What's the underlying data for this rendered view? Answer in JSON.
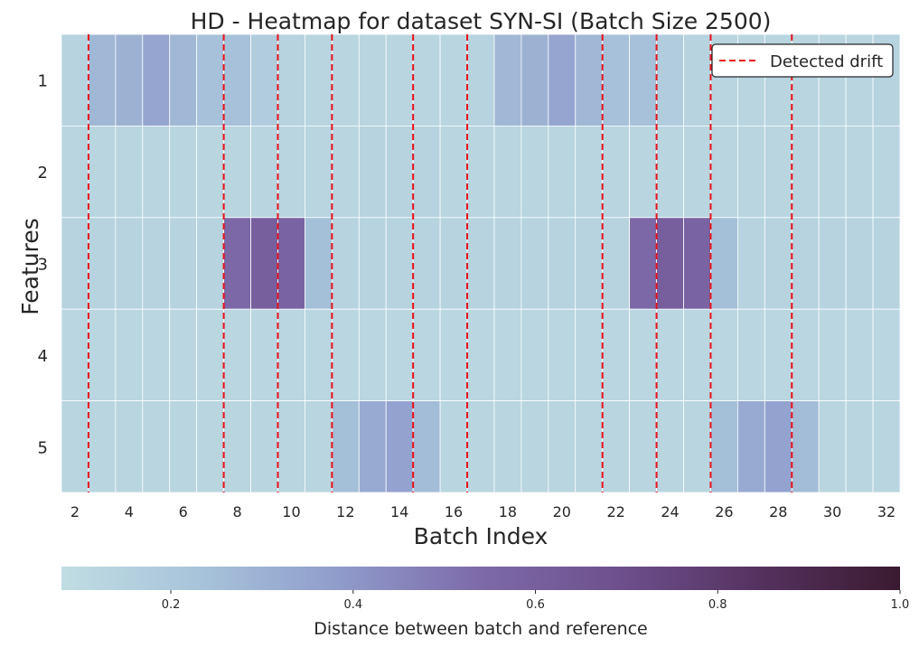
{
  "chart_data": {
    "type": "heatmap",
    "title": "HD - Heatmap for dataset SYN-SI (Batch Size 2500)",
    "xlabel": "Batch Index",
    "ylabel": "Features",
    "x": [
      2,
      3,
      4,
      5,
      6,
      7,
      8,
      9,
      10,
      11,
      12,
      13,
      14,
      15,
      16,
      17,
      18,
      19,
      20,
      21,
      22,
      23,
      24,
      25,
      26,
      27,
      28,
      29,
      30,
      31,
      32
    ],
    "x_tick_labels": [
      "2",
      "4",
      "6",
      "8",
      "10",
      "12",
      "14",
      "16",
      "18",
      "20",
      "22",
      "24",
      "26",
      "28",
      "30",
      "32"
    ],
    "y": [
      "1",
      "2",
      "3",
      "4",
      "5"
    ],
    "values": [
      [
        0.14,
        0.28,
        0.3,
        0.35,
        0.28,
        0.24,
        0.24,
        0.18,
        0.14,
        0.13,
        0.13,
        0.13,
        0.13,
        0.13,
        0.13,
        0.14,
        0.28,
        0.3,
        0.35,
        0.28,
        0.24,
        0.24,
        0.18,
        0.14,
        0.13,
        0.13,
        0.13,
        0.13,
        0.13,
        0.13,
        0.14
      ],
      [
        0.13,
        0.13,
        0.13,
        0.13,
        0.13,
        0.13,
        0.13,
        0.13,
        0.13,
        0.13,
        0.13,
        0.14,
        0.14,
        0.14,
        0.13,
        0.13,
        0.13,
        0.13,
        0.13,
        0.13,
        0.13,
        0.13,
        0.13,
        0.13,
        0.13,
        0.13,
        0.13,
        0.13,
        0.13,
        0.13,
        0.13
      ],
      [
        0.14,
        0.14,
        0.14,
        0.14,
        0.14,
        0.14,
        0.55,
        0.6,
        0.58,
        0.25,
        0.14,
        0.14,
        0.14,
        0.14,
        0.14,
        0.14,
        0.14,
        0.14,
        0.14,
        0.14,
        0.14,
        0.55,
        0.6,
        0.58,
        0.25,
        0.14,
        0.14,
        0.14,
        0.14,
        0.14,
        0.14
      ],
      [
        0.12,
        0.12,
        0.12,
        0.12,
        0.12,
        0.12,
        0.12,
        0.12,
        0.12,
        0.12,
        0.12,
        0.12,
        0.12,
        0.12,
        0.12,
        0.12,
        0.12,
        0.12,
        0.12,
        0.12,
        0.12,
        0.12,
        0.12,
        0.12,
        0.12,
        0.12,
        0.12,
        0.12,
        0.12,
        0.12,
        0.12
      ],
      [
        0.13,
        0.13,
        0.13,
        0.13,
        0.13,
        0.13,
        0.13,
        0.13,
        0.13,
        0.13,
        0.25,
        0.33,
        0.36,
        0.26,
        0.13,
        0.13,
        0.13,
        0.13,
        0.13,
        0.13,
        0.13,
        0.13,
        0.13,
        0.13,
        0.25,
        0.33,
        0.36,
        0.26,
        0.13,
        0.13,
        0.13
      ]
    ],
    "drift_positions": [
      2.5,
      7.5,
      9.5,
      11.5,
      14.5,
      16.5,
      21.5,
      23.5,
      25.5,
      28.5
    ],
    "legend": {
      "label": "Detected drift",
      "position": "upper-right"
    },
    "colorbar": {
      "label": "Distance between batch and reference",
      "min": 0.08,
      "max": 1.0,
      "ticks": [
        0.2,
        0.4,
        0.6,
        0.8,
        1.0
      ],
      "tick_labels": [
        "0.2",
        "0.4",
        "0.6",
        "0.8",
        "1.0"
      ],
      "orientation": "horizontal"
    },
    "colors": {
      "colormap_stops": [
        "#c0dde3",
        "#a7c3da",
        "#8f9bcb",
        "#7d6aa9",
        "#6e4f8d",
        "#54325f",
        "#3a1a30"
      ],
      "drift_line": "#e8121a",
      "grid": "#ffffff"
    }
  }
}
